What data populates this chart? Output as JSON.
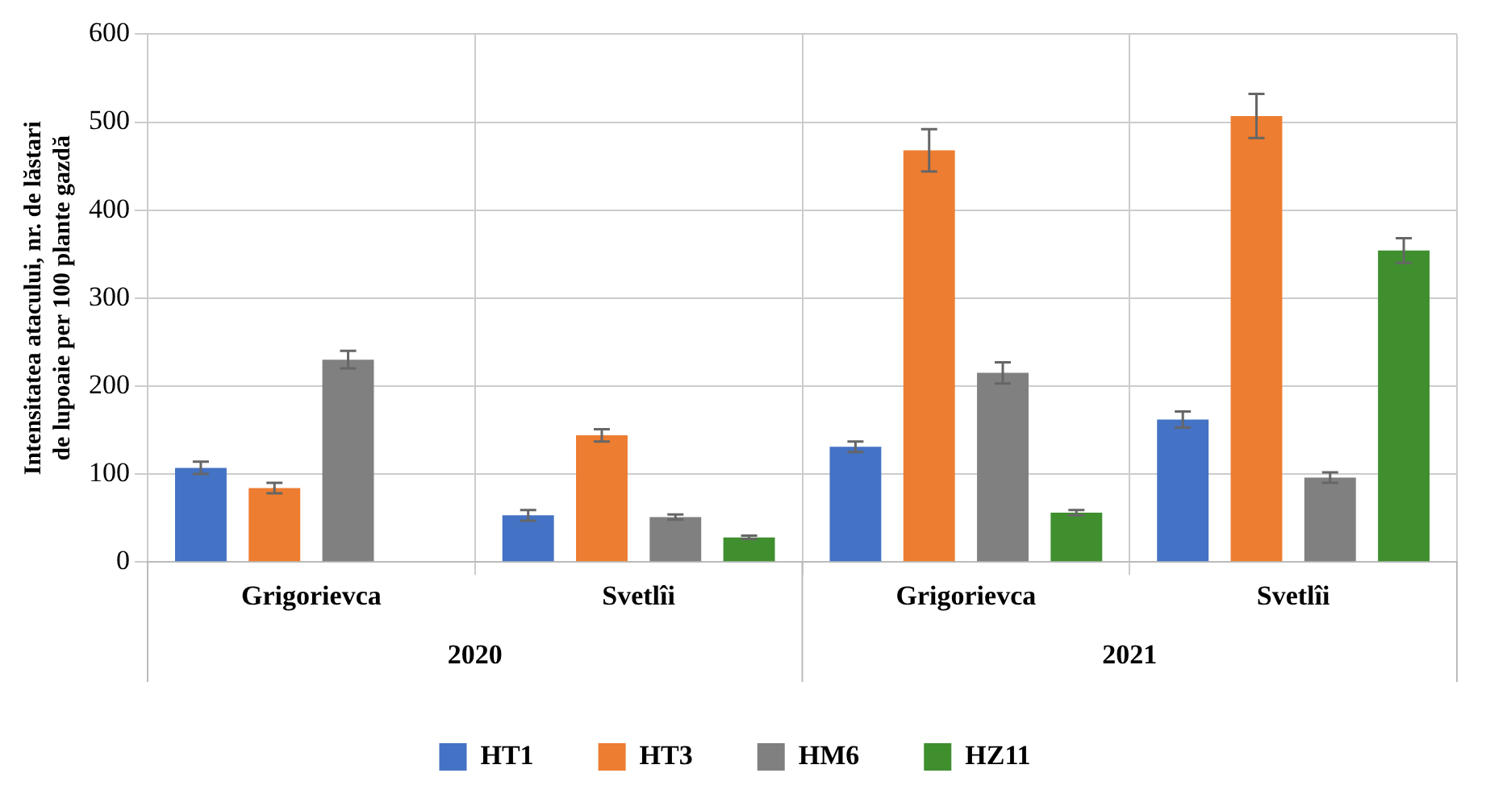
{
  "chart_data": {
    "type": "bar",
    "ylabel": "Intensitatea atacului, nr. de lăstari de lupoaie per 100 plante gazdă",
    "categories": [
      "Grigorievca",
      "Svetlîi",
      "Grigorievca",
      "Svetlîi"
    ],
    "series": [
      {
        "name": "HT1",
        "color": "#4472c4",
        "values": [
          107,
          53,
          131,
          162
        ],
        "errors": [
          7,
          6,
          6,
          9
        ]
      },
      {
        "name": "HT3",
        "color": "#ed7d31",
        "values": [
          84,
          144,
          468,
          507
        ],
        "errors": [
          6,
          7,
          24,
          25
        ]
      },
      {
        "name": "HM6",
        "color": "#808080",
        "values": [
          230,
          51,
          215,
          96
        ],
        "errors": [
          10,
          3,
          12,
          6
        ]
      },
      {
        "name": "HZ11",
        "color": "#3f8f2f",
        "values": [
          null,
          28,
          56,
          354
        ],
        "errors": [
          null,
          2,
          3,
          14
        ]
      }
    ],
    "annotations": [
      "2020",
      "2021"
    ],
    "ylim": [
      0,
      600
    ],
    "yticks": [
      0,
      100,
      200,
      300,
      400,
      500,
      600
    ],
    "grid": true,
    "legend": "bottom"
  }
}
